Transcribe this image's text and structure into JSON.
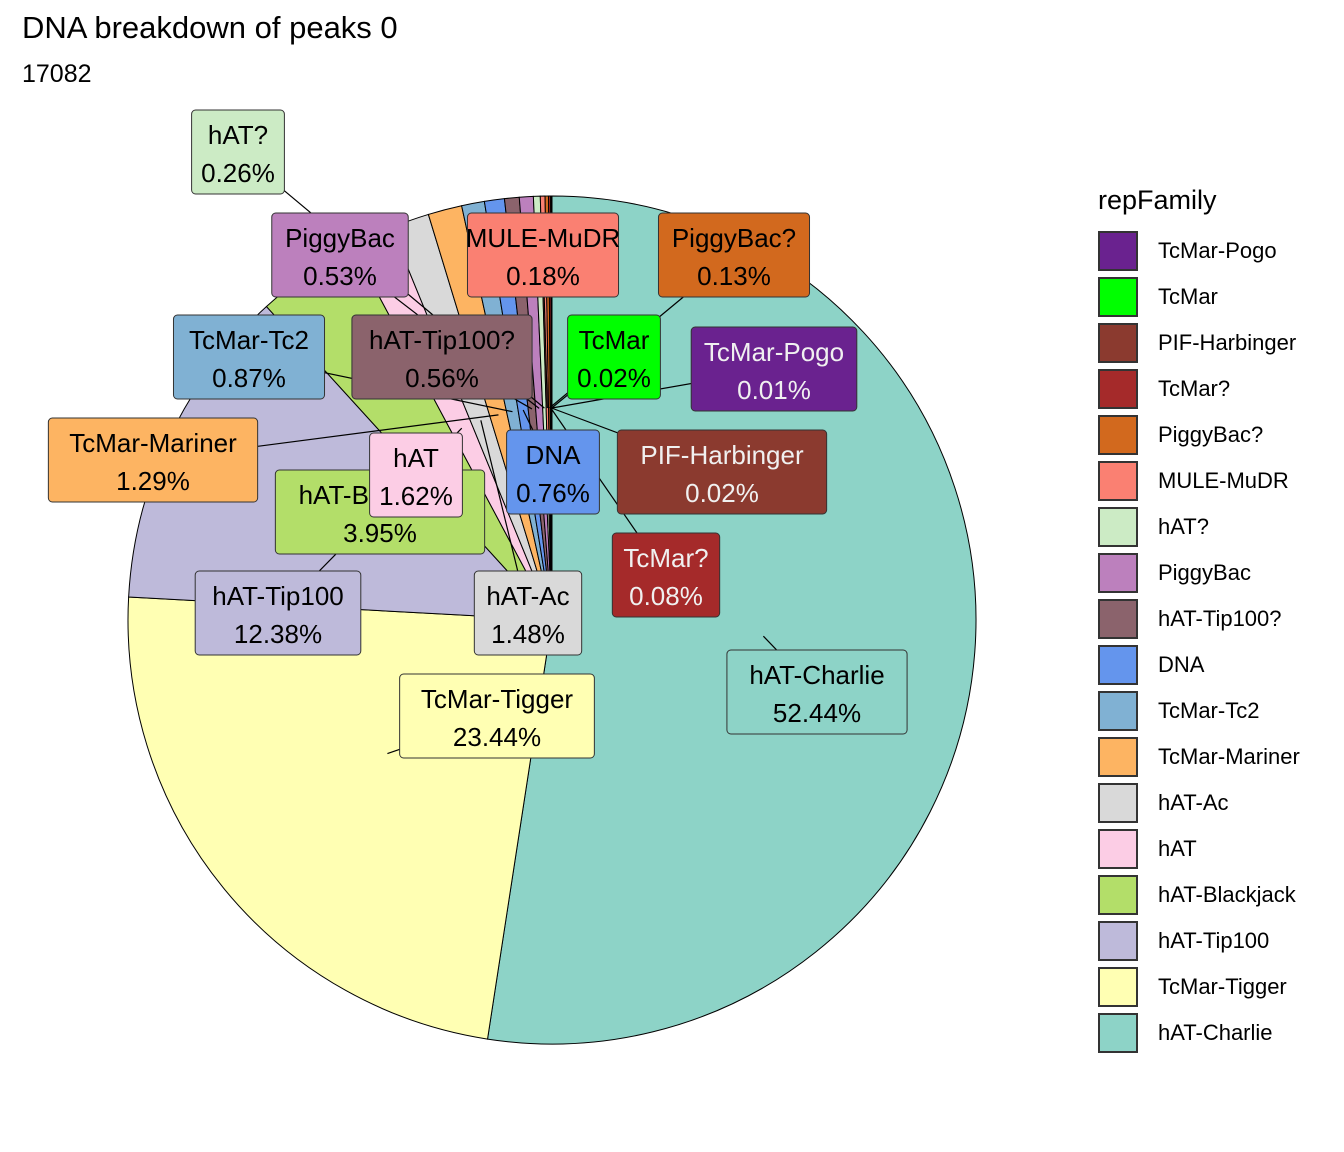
{
  "title": "DNA breakdown of peaks 0",
  "subtitle": "17082",
  "legend": {
    "title": "repFamily",
    "items": [
      {
        "label": "TcMar-Pogo",
        "color": "#6A228F"
      },
      {
        "label": "TcMar",
        "color": "#00FF00"
      },
      {
        "label": "PIF-Harbinger",
        "color": "#8B3A2F"
      },
      {
        "label": "TcMar?",
        "color": "#A52A2A"
      },
      {
        "label": "PiggyBac?",
        "color": "#D2691E"
      },
      {
        "label": "MULE-MuDR",
        "color": "#FA8072"
      },
      {
        "label": "hAT?",
        "color": "#CCEBC5"
      },
      {
        "label": "PiggyBac",
        "color": "#BC80BD"
      },
      {
        "label": "hAT-Tip100?",
        "color": "#8B636C"
      },
      {
        "label": "DNA",
        "color": "#6495ED"
      },
      {
        "label": "TcMar-Tc2",
        "color": "#80B1D3"
      },
      {
        "label": "TcMar-Mariner",
        "color": "#FDB462"
      },
      {
        "label": "hAT-Ac",
        "color": "#D9D9D9"
      },
      {
        "label": "hAT",
        "color": "#FCCDE5"
      },
      {
        "label": "hAT-Blackjack",
        "color": "#B3DE69"
      },
      {
        "label": "hAT-Tip100",
        "color": "#BEBADA"
      },
      {
        "label": "TcMar-Tigger",
        "color": "#FFFFB3"
      },
      {
        "label": "hAT-Charlie",
        "color": "#8DD3C7"
      }
    ]
  },
  "chart_data": {
    "type": "pie",
    "title": "DNA breakdown of peaks 0",
    "subtitle": "17082",
    "slices": [
      {
        "name": "hAT-Charlie",
        "value": 52.44,
        "label": "52.44%",
        "color": "#8DD3C7"
      },
      {
        "name": "TcMar-Tigger",
        "value": 23.44,
        "label": "23.44%",
        "color": "#FFFFB3"
      },
      {
        "name": "hAT-Tip100",
        "value": 12.38,
        "label": "12.38%",
        "color": "#BEBADA"
      },
      {
        "name": "hAT-Blackjack",
        "value": 3.95,
        "label": "3.95%",
        "color": "#B3DE69"
      },
      {
        "name": "hAT",
        "value": 1.62,
        "label": "1.62%",
        "color": "#FCCDE5"
      },
      {
        "name": "hAT-Ac",
        "value": 1.48,
        "label": "1.48%",
        "color": "#D9D9D9"
      },
      {
        "name": "TcMar-Mariner",
        "value": 1.29,
        "label": "1.29%",
        "color": "#FDB462"
      },
      {
        "name": "TcMar-Tc2",
        "value": 0.87,
        "label": "0.87%",
        "color": "#80B1D3"
      },
      {
        "name": "DNA",
        "value": 0.76,
        "label": "0.76%",
        "color": "#6495ED"
      },
      {
        "name": "hAT-Tip100?",
        "value": 0.56,
        "label": "0.56%",
        "color": "#8B636C"
      },
      {
        "name": "PiggyBac",
        "value": 0.53,
        "label": "0.53%",
        "color": "#BC80BD"
      },
      {
        "name": "hAT?",
        "value": 0.26,
        "label": "0.26%",
        "color": "#CCEBC5"
      },
      {
        "name": "MULE-MuDR",
        "value": 0.18,
        "label": "0.18%",
        "color": "#FA8072"
      },
      {
        "name": "PiggyBac?",
        "value": 0.13,
        "label": "0.13%",
        "color": "#D2691E"
      },
      {
        "name": "TcMar?",
        "value": 0.08,
        "label": "0.08%",
        "color": "#A52A2A"
      },
      {
        "name": "PIF-Harbinger",
        "value": 0.02,
        "label": "0.02%",
        "color": "#8B3A2F"
      },
      {
        "name": "TcMar",
        "value": 0.02,
        "label": "0.02%",
        "color": "#00FF00"
      },
      {
        "name": "TcMar-Pogo",
        "value": 0.01,
        "label": "0.01%",
        "color": "#6A228F"
      }
    ],
    "legend_position": "right"
  }
}
